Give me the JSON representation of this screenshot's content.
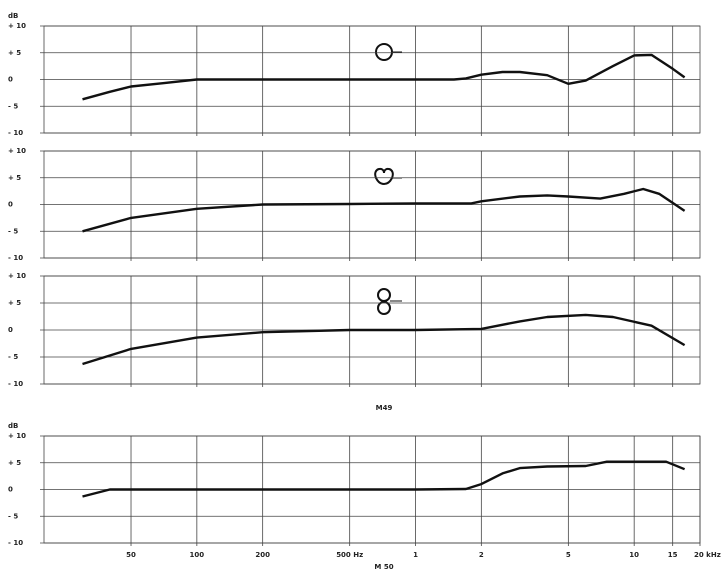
{
  "chart_data": [
    {
      "type": "line",
      "ylabel": "dB",
      "xscale": "log",
      "xlim": [
        20,
        20000
      ],
      "ylim": [
        -10,
        10
      ],
      "xticks": [
        50,
        100,
        200,
        500,
        1000,
        2000,
        5000,
        10000,
        15000
      ],
      "yticks": [
        {
          "value": 10,
          "label": "+ 10"
        },
        {
          "value": 5,
          "label": "+ 5"
        },
        0,
        {
          "value": -5,
          "label": "- 5"
        },
        {
          "value": -10,
          "label": "- 10"
        }
      ],
      "grid": true,
      "x": [
        30,
        40,
        50,
        70,
        100,
        150,
        200,
        300,
        500,
        1000,
        1500,
        1700,
        2000,
        2500,
        3000,
        4000,
        5000,
        6000,
        8000,
        10000,
        12000,
        15000,
        17000
      ],
      "series": [
        {
          "color": "#111111",
          "values": [
            -3.7,
            -2.3,
            -1.3,
            -0.7,
            0,
            0,
            0,
            0,
            0,
            0,
            0,
            0.2,
            0.9,
            1.4,
            1.4,
            0.8,
            -0.8,
            -0.2,
            2.5,
            4.5,
            4.6,
            2,
            0.4
          ]
        }
      ]
    },
    {
      "type": "line",
      "xscale": "log",
      "xlim": [
        20,
        20000
      ],
      "ylim": [
        -10,
        10
      ],
      "xticks": [
        50,
        100,
        200,
        500,
        1000,
        2000,
        5000,
        10000,
        15000
      ],
      "yticks": [
        {
          "value": 10,
          "label": "+ 10"
        },
        {
          "value": 5,
          "label": "+ 5"
        },
        0,
        {
          "value": -5,
          "label": "- 5"
        },
        {
          "value": -10,
          "label": "- 10"
        }
      ],
      "grid": true,
      "x": [
        30,
        50,
        100,
        200,
        500,
        1000,
        1800,
        2000,
        3000,
        4000,
        5000,
        7000,
        9000,
        11000,
        13000,
        17000
      ],
      "series": [
        {
          "color": "#111111",
          "values": [
            -5,
            -2.5,
            -0.8,
            0,
            0.1,
            0.2,
            0.2,
            0.6,
            1.5,
            1.7,
            1.5,
            1.1,
            2,
            2.9,
            2,
            -1.2
          ]
        }
      ]
    },
    {
      "type": "line",
      "caption": "M49",
      "xscale": "log",
      "xlim": [
        20,
        20000
      ],
      "ylim": [
        -10,
        10
      ],
      "xticks": [
        50,
        100,
        200,
        500,
        1000,
        2000,
        5000,
        10000,
        15000
      ],
      "yticks": [
        {
          "value": 10,
          "label": "+ 10"
        },
        {
          "value": 5,
          "label": "+ 5"
        },
        0,
        {
          "value": -5,
          "label": "- 5"
        },
        {
          "value": -10,
          "label": "- 10"
        }
      ],
      "grid": true,
      "x": [
        30,
        50,
        100,
        200,
        500,
        1000,
        2000,
        3000,
        4000,
        6000,
        8000,
        12000,
        17000
      ],
      "series": [
        {
          "color": "#111111",
          "values": [
            -6.3,
            -3.5,
            -1.4,
            -0.4,
            0,
            0,
            0.2,
            1.6,
            2.4,
            2.8,
            2.4,
            0.8,
            -2.8
          ]
        }
      ]
    },
    {
      "type": "line",
      "ylabel": "dB",
      "caption": "M 50",
      "xscale": "log",
      "xlim": [
        20,
        20000
      ],
      "ylim": [
        -10,
        10
      ],
      "xticks": [
        50,
        100,
        200,
        {
          "value": 500,
          "label": "500 Hz"
        },
        {
          "value": 1000,
          "label": "1"
        },
        {
          "value": 2000,
          "label": "2"
        },
        {
          "value": 5000,
          "label": "5"
        },
        {
          "value": 10000,
          "label": "10"
        },
        {
          "value": 15000,
          "label": "15"
        },
        {
          "value": 20000,
          "label": "20 kHz"
        }
      ],
      "yticks": [
        {
          "value": 10,
          "label": "+ 10"
        },
        {
          "value": 5,
          "label": "+ 5"
        },
        0,
        {
          "value": -5,
          "label": "- 5"
        },
        {
          "value": -10,
          "label": "- 10"
        }
      ],
      "grid": true,
      "x": [
        30,
        40,
        100,
        1000,
        1700,
        2000,
        2500,
        3000,
        4000,
        6000,
        7500,
        10000,
        14000,
        17000
      ],
      "series": [
        {
          "color": "#111111",
          "values": [
            -1.3,
            0,
            0,
            0,
            0.1,
            1,
            3,
            4,
            4.3,
            4.4,
            5.2,
            5.2,
            5.2,
            3.8
          ]
        }
      ]
    }
  ]
}
